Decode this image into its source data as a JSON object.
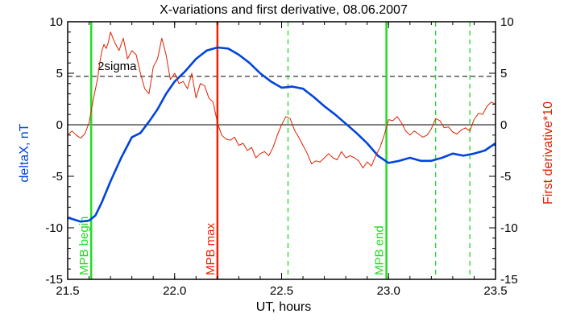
{
  "chart_data": {
    "type": "line",
    "title": "X-variations and first derivative, 08.06.2007",
    "xlabel": "UT, hours",
    "ylabel_left": "deltaX, nT",
    "ylabel_right": "First derivative*10",
    "xlim": [
      21.5,
      23.5
    ],
    "ylim": [
      -15,
      10
    ],
    "xticks": [
      21.5,
      22.0,
      22.5,
      23.0,
      23.5
    ],
    "xtick_labels": [
      "21.5",
      "22.0",
      "22.5",
      "23.0",
      "23.5"
    ],
    "yticks": [
      -15,
      -10,
      -5,
      0,
      5,
      10
    ],
    "ytick_labels": [
      "-15",
      "-10",
      "-5",
      "0",
      "5",
      "10"
    ],
    "threshold": {
      "label": "2sigma",
      "value": 4.7,
      "color": "#000000",
      "style": "dashed"
    },
    "zero_line": 0,
    "colors": {
      "deltaX": "#0044dd",
      "derivative": "#dd2200",
      "mpb_green": "#22dd22",
      "mpb_red": "#ee2200"
    },
    "vertical_markers": [
      {
        "x": 21.61,
        "label": "MPB begin",
        "color": "#22dd22",
        "style": "solid"
      },
      {
        "x": 22.2,
        "label": "MPB max",
        "color": "#ee2200",
        "style": "solid"
      },
      {
        "x": 22.99,
        "label": "MPB end",
        "color": "#22dd22",
        "style": "solid"
      },
      {
        "x": 22.53,
        "label": "",
        "color": "#22dd22",
        "style": "dashed"
      },
      {
        "x": 23.22,
        "label": "",
        "color": "#22dd22",
        "style": "dashed"
      },
      {
        "x": 23.38,
        "label": "",
        "color": "#22dd22",
        "style": "dashed"
      }
    ],
    "series": [
      {
        "name": "deltaX",
        "axis": "left",
        "x": [
          21.5,
          21.56,
          21.6,
          21.63,
          21.66,
          21.7,
          21.75,
          21.8,
          21.84,
          21.88,
          21.92,
          21.96,
          22.0,
          22.05,
          22.1,
          22.15,
          22.2,
          22.25,
          22.3,
          22.35,
          22.4,
          22.45,
          22.5,
          22.55,
          22.6,
          22.65,
          22.7,
          22.75,
          22.8,
          22.85,
          22.9,
          22.95,
          23.0,
          23.05,
          23.1,
          23.15,
          23.2,
          23.25,
          23.3,
          23.35,
          23.4,
          23.45,
          23.5
        ],
        "values": [
          -9.0,
          -9.4,
          -9.3,
          -8.8,
          -7.5,
          -5.5,
          -3.2,
          -1.2,
          -0.8,
          0.3,
          1.5,
          3.0,
          4.2,
          5.2,
          6.4,
          7.2,
          7.5,
          7.4,
          6.8,
          6.0,
          5.0,
          4.2,
          3.6,
          3.7,
          3.5,
          2.7,
          1.8,
          1.0,
          0.1,
          -0.8,
          -1.8,
          -3.0,
          -3.7,
          -3.5,
          -3.2,
          -3.5,
          -3.5,
          -3.2,
          -2.8,
          -3.0,
          -2.8,
          -2.5,
          -1.8
        ]
      },
      {
        "name": "First derivative*10",
        "axis": "right",
        "x": [
          21.5,
          21.52,
          21.54,
          21.56,
          21.58,
          21.6,
          21.62,
          21.64,
          21.65,
          21.66,
          21.67,
          21.68,
          21.69,
          21.7,
          21.72,
          21.74,
          21.76,
          21.78,
          21.8,
          21.82,
          21.84,
          21.86,
          21.88,
          21.9,
          21.92,
          21.94,
          21.96,
          21.98,
          22.0,
          22.02,
          22.04,
          22.06,
          22.08,
          22.1,
          22.12,
          22.14,
          22.16,
          22.18,
          22.2,
          22.22,
          22.24,
          22.26,
          22.28,
          22.3,
          22.32,
          22.34,
          22.36,
          22.38,
          22.4,
          22.42,
          22.44,
          22.46,
          22.48,
          22.5,
          22.52,
          22.54,
          22.56,
          22.58,
          22.6,
          22.62,
          22.64,
          22.66,
          22.68,
          22.7,
          22.72,
          22.74,
          22.76,
          22.78,
          22.8,
          22.82,
          22.84,
          22.86,
          22.88,
          22.9,
          22.92,
          22.94,
          22.96,
          22.98,
          23.0,
          23.02,
          23.04,
          23.06,
          23.08,
          23.1,
          23.12,
          23.14,
          23.16,
          23.18,
          23.2,
          23.22,
          23.24,
          23.26,
          23.28,
          23.3,
          23.32,
          23.34,
          23.36,
          23.38,
          23.4,
          23.42,
          23.44,
          23.46,
          23.48,
          23.5
        ],
        "values": [
          -1.0,
          -0.6,
          -1.0,
          -1.3,
          -0.9,
          0.2,
          2.5,
          4.5,
          6.0,
          7.2,
          7.8,
          7.4,
          8.0,
          9.0,
          8.0,
          7.2,
          8.4,
          6.4,
          7.2,
          6.8,
          5.0,
          3.5,
          3.0,
          5.6,
          6.4,
          8.4,
          6.8,
          4.4,
          5.0,
          4.0,
          4.2,
          3.5,
          5.0,
          2.6,
          4.0,
          3.8,
          2.6,
          2.2,
          0.2,
          -1.0,
          -1.4,
          -1.5,
          -1.2,
          -2.0,
          -1.8,
          -2.5,
          -2.2,
          -3.2,
          -2.8,
          -2.6,
          -3.0,
          -2.2,
          -1.0,
          0.0,
          0.8,
          0.6,
          -0.5,
          -1.2,
          -2.0,
          -2.8,
          -3.8,
          -3.5,
          -3.6,
          -3.2,
          -2.8,
          -3.2,
          -3.4,
          -2.6,
          -3.2,
          -3.0,
          -3.2,
          -3.5,
          -4.2,
          -3.6,
          -4.0,
          -3.0,
          -2.2,
          -1.0,
          0.5,
          0.4,
          0.8,
          0.2,
          -0.6,
          -1.0,
          -0.6,
          -0.9,
          -1.2,
          -1.0,
          -0.4,
          0.6,
          0.4,
          -0.3,
          -0.2,
          -0.7,
          -0.9,
          -0.5,
          -0.3,
          -0.6,
          0.5,
          1.1,
          1.0,
          1.8,
          2.2,
          2.0
        ]
      }
    ]
  }
}
